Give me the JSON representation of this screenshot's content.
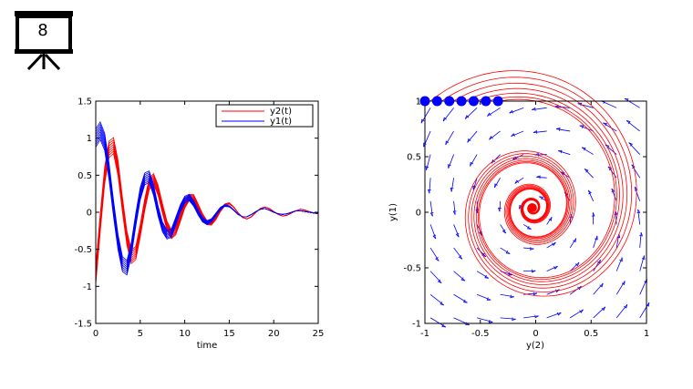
{
  "slide": {
    "number": "8"
  },
  "chart_data": [
    {
      "type": "line",
      "xlabel": "time",
      "ylabel": "",
      "xlim": [
        0,
        25
      ],
      "ylim": [
        -1.5,
        1.5
      ],
      "xticks": [
        0,
        5,
        10,
        15,
        20,
        25
      ],
      "yticks": [
        -1.5,
        -1,
        -0.5,
        0,
        0.5,
        1,
        1.5
      ],
      "legend_position": "top-right",
      "series": [
        {
          "name": "y2(t)",
          "color": "#ff0000",
          "x": [
            0,
            0.5,
            1,
            1.5,
            2,
            2.5,
            3,
            3.5,
            4,
            4.5,
            5,
            5.5,
            6,
            6.5,
            7,
            7.5,
            8,
            8.5,
            9,
            9.5,
            10,
            10.5,
            11,
            11.5,
            12,
            12.5,
            13,
            13.5,
            14,
            14.5,
            15,
            15.5,
            16,
            16.5,
            17,
            17.5,
            18,
            18.5,
            19,
            19.5,
            20,
            20.5,
            21,
            21.5,
            22,
            22.5,
            23,
            23.5,
            24,
            24.5,
            25
          ],
          "values": [
            -0.85,
            -0.15,
            0.5,
            0.85,
            0.9,
            0.6,
            0.1,
            -0.35,
            -0.6,
            -0.55,
            -0.25,
            0.1,
            0.38,
            0.45,
            0.3,
            0.05,
            -0.18,
            -0.3,
            -0.25,
            -0.08,
            0.1,
            0.2,
            0.2,
            0.08,
            -0.05,
            -0.14,
            -0.15,
            -0.08,
            0.02,
            0.1,
            0.12,
            0.07,
            -0.01,
            -0.07,
            -0.09,
            -0.06,
            0.0,
            0.05,
            0.07,
            0.05,
            0.01,
            -0.03,
            -0.05,
            -0.04,
            -0.01,
            0.02,
            0.04,
            0.03,
            0.01,
            -0.01,
            -0.02
          ]
        },
        {
          "name": "y1(t)",
          "color": "#0000ff",
          "x": [
            0,
            0.5,
            1,
            1.5,
            2,
            2.5,
            3,
            3.5,
            4,
            4.5,
            5,
            5.5,
            6,
            6.5,
            7,
            7.5,
            8,
            8.5,
            9,
            9.5,
            10,
            10.5,
            11,
            11.5,
            12,
            12.5,
            13,
            13.5,
            14,
            14.5,
            15,
            15.5,
            16,
            16.5,
            17,
            17.5,
            18,
            18.5,
            19,
            19.5,
            20,
            20.5,
            21,
            21.5,
            22,
            22.5,
            23,
            23.5,
            24,
            24.5,
            25
          ],
          "values": [
            1.0,
            1.1,
            0.95,
            0.55,
            0.05,
            -0.4,
            -0.7,
            -0.75,
            -0.5,
            -0.1,
            0.25,
            0.45,
            0.48,
            0.3,
            0.02,
            -0.2,
            -0.3,
            -0.28,
            -0.12,
            0.05,
            0.17,
            0.2,
            0.12,
            0.0,
            -0.1,
            -0.14,
            -0.11,
            -0.03,
            0.05,
            0.09,
            0.08,
            0.03,
            -0.03,
            -0.06,
            -0.06,
            -0.03,
            0.01,
            0.04,
            0.05,
            0.03,
            0.0,
            -0.02,
            -0.03,
            -0.02,
            0.0,
            0.02,
            0.02,
            0.01,
            0.0,
            -0.01,
            -0.01
          ]
        }
      ]
    },
    {
      "type": "line",
      "xlabel": "y(2)",
      "ylabel": "y(1)",
      "xlim": [
        -1,
        1
      ],
      "ylim": [
        -1,
        1
      ],
      "xticks": [
        -1,
        -0.5,
        0,
        0.5,
        1
      ],
      "yticks": [
        -1,
        -0.5,
        0,
        0.5,
        1
      ],
      "series": [
        {
          "color": "#ff0000",
          "spiral_center": [
            -0.03,
            0.04
          ]
        }
      ],
      "markers": {
        "color": "#0000ff",
        "x": [
          -1,
          -0.89,
          -0.78,
          -0.67,
          -0.56,
          -0.45,
          -0.34
        ],
        "y": [
          1,
          1,
          1,
          1,
          1,
          1,
          1
        ]
      },
      "quiver": {
        "color": "#0000ff"
      }
    }
  ]
}
